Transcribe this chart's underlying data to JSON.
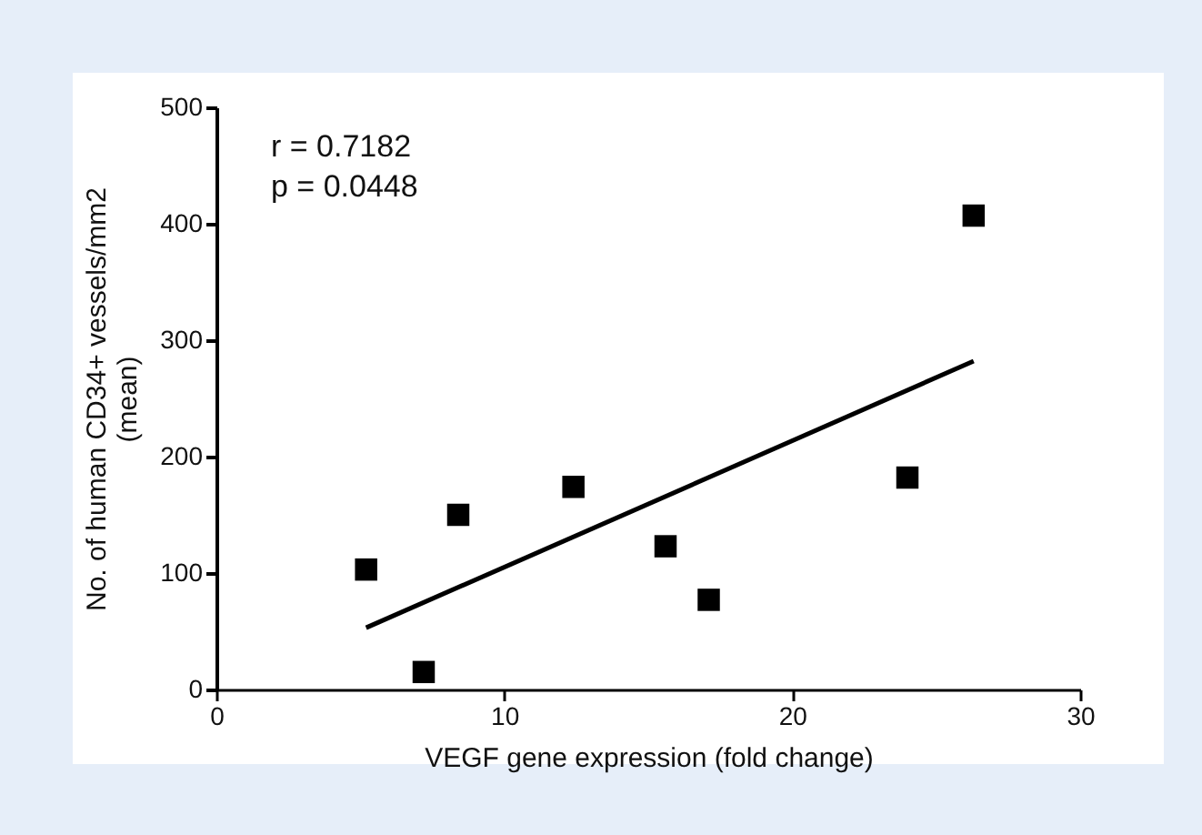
{
  "chart_data": {
    "type": "scatter",
    "xlabel": "VEGF gene expression (fold change)",
    "ylabel": "No. of human CD34+ vessels/mm2\n(mean)",
    "xlim": [
      0,
      30
    ],
    "xticks": [
      0,
      10,
      20,
      30
    ],
    "ylim": [
      0,
      500
    ],
    "yticks": [
      0,
      100,
      200,
      300,
      400,
      500
    ],
    "grid": false,
    "annotations": [
      "r = 0.7182",
      "p = 0.0448"
    ],
    "series": [
      {
        "marker": "square",
        "color": "#000000",
        "x": [
          5.2,
          7.2,
          8.4,
          12.4,
          15.6,
          17.1,
          24,
          26.3
        ],
        "values": [
          103,
          15,
          150,
          174,
          123,
          77,
          182,
          407
        ]
      },
      {
        "type": "line",
        "color": "#000000",
        "x": [
          5.2,
          26.3
        ],
        "values": [
          53,
          282
        ]
      }
    ]
  }
}
